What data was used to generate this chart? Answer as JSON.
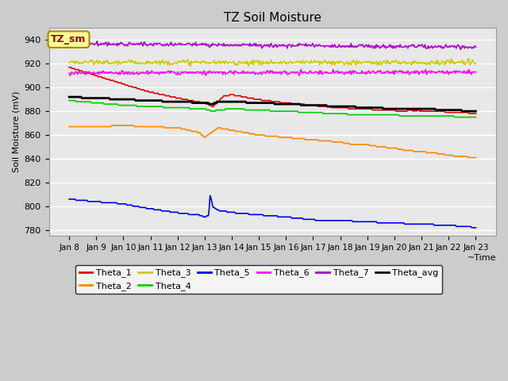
{
  "title": "TZ Soil Moisture",
  "ylabel": "Soil Moisture (mV)",
  "xlabel": "~Time",
  "x_tick_labels": [
    "Jan 8",
    "Jan 9",
    "Jan 10",
    "Jan 11",
    "Jan 12",
    "Jan 13",
    "Jan 14",
    "Jan 15",
    "Jan 16",
    "Jan 17",
    "Jan 18",
    "Jan 19",
    "Jan 20",
    "Jan 21",
    "Jan 22",
    "Jan 23"
  ],
  "ylim": [
    775,
    950
  ],
  "yticks": [
    780,
    800,
    820,
    840,
    860,
    880,
    900,
    920,
    940
  ],
  "n_points": 480,
  "legend_label": "TZ_sm",
  "series_colors": {
    "Theta_1": "#dd0000",
    "Theta_2": "#ff8800",
    "Theta_3": "#cccc00",
    "Theta_4": "#00cc00",
    "Theta_5": "#0000ee",
    "Theta_6": "#ff00ff",
    "Theta_7": "#aa00cc",
    "Theta_avg": "#000000"
  },
  "legend_order": [
    "Theta_1",
    "Theta_2",
    "Theta_3",
    "Theta_4",
    "Theta_5",
    "Theta_6",
    "Theta_7",
    "Theta_avg"
  ],
  "fig_bg": "#cccccc",
  "plot_bg": "#e8e8e8",
  "grid_color": "#ffffff"
}
